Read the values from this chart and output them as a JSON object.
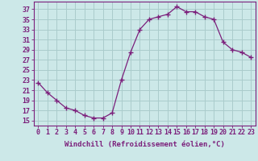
{
  "x": [
    0,
    1,
    2,
    3,
    4,
    5,
    6,
    7,
    8,
    9,
    10,
    11,
    12,
    13,
    14,
    15,
    16,
    17,
    18,
    19,
    20,
    21,
    22,
    23
  ],
  "y": [
    22.5,
    20.5,
    19,
    17.5,
    17,
    16,
    15.5,
    15.5,
    16.5,
    23,
    28.5,
    33,
    35,
    35.5,
    36,
    37.5,
    36.5,
    36.5,
    35.5,
    35,
    30.5,
    29,
    28.5,
    27.5
  ],
  "line_color": "#7B1F7B",
  "marker_color": "#7B1F7B",
  "bg_color": "#cce8e8",
  "grid_color": "#aacccc",
  "xlabel": "Windchill (Refroidissement éolien,°C)",
  "yticks": [
    15,
    17,
    19,
    21,
    23,
    25,
    27,
    29,
    31,
    33,
    35,
    37
  ],
  "xlim": [
    -0.5,
    23.5
  ],
  "ylim": [
    14,
    38.5
  ],
  "xlabel_fontsize": 6.5,
  "tick_fontsize": 6
}
